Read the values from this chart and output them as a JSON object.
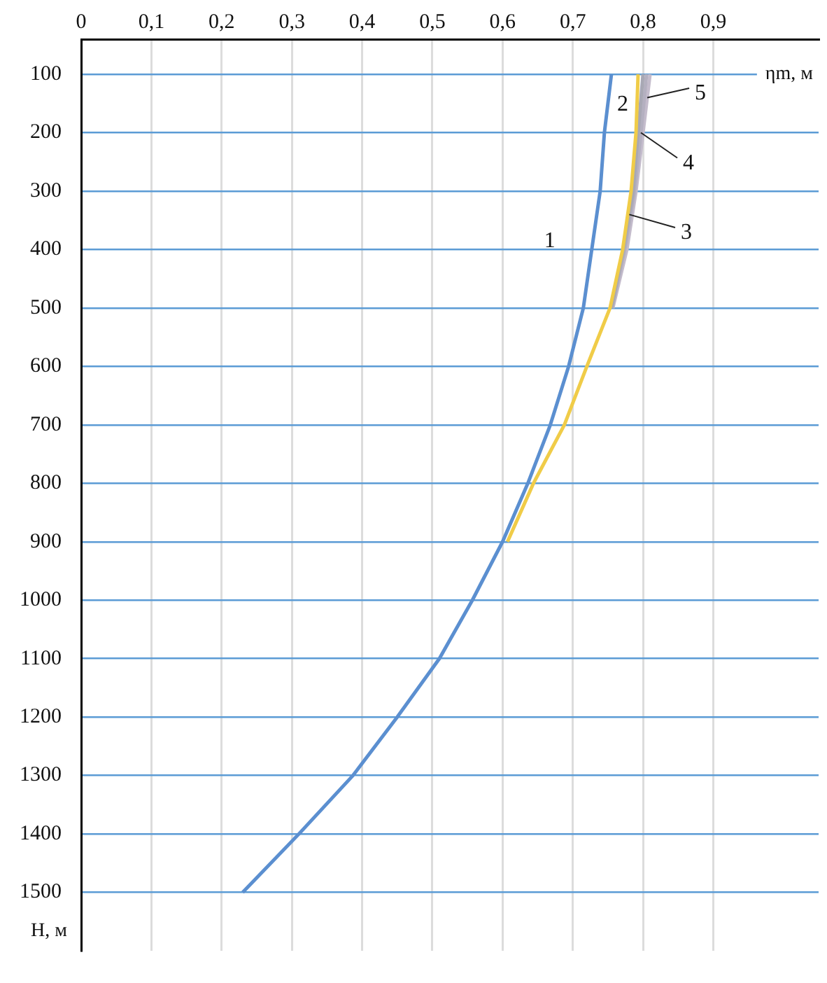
{
  "chart_data": {
    "type": "line",
    "orientation": "horizontal",
    "xlabel": "ηm, м",
    "ylabel": "H, м",
    "x": [
      100,
      200,
      300,
      400,
      500,
      600,
      700,
      800,
      900,
      1000,
      1100,
      1200,
      1300,
      1400,
      1500
    ],
    "series": [
      {
        "name": "1",
        "color": "#5b8fd0",
        "values": [
          0.755,
          0.745,
          0.739,
          0.727,
          0.715,
          0.694,
          0.668,
          0.636,
          0.6,
          0.557,
          0.51,
          0.45,
          0.387,
          0.31,
          0.23
        ]
      },
      {
        "name": "2",
        "color": "#f0cc48",
        "values": [
          0.793,
          0.79,
          0.783,
          0.771,
          0.753,
          0.72,
          0.688,
          0.644,
          0.607,
          null,
          null,
          null,
          null,
          null,
          null
        ]
      },
      {
        "name": "3",
        "color": "#a8a8b4",
        "values": [
          0.8,
          0.793,
          0.786,
          0.772,
          0.755,
          null,
          null,
          null,
          null,
          null,
          null,
          null,
          null,
          null,
          null
        ]
      },
      {
        "name": "4",
        "color": "#b4b0c0",
        "values": [
          0.805,
          0.797,
          0.788,
          0.774,
          0.756,
          null,
          null,
          null,
          null,
          null,
          null,
          null,
          null,
          null,
          null
        ]
      },
      {
        "name": "5",
        "color": "#c4bccc",
        "values": [
          0.81,
          0.8,
          0.79,
          0.777,
          0.757,
          null,
          null,
          null,
          null,
          null,
          null,
          null,
          null,
          null,
          null
        ]
      }
    ],
    "xlim": [
      0,
      1.05
    ],
    "xticks": [
      0,
      {
        "value": 0.1,
        "label": "0,1"
      },
      {
        "value": 0.2,
        "label": "0,2"
      },
      {
        "value": 0.3,
        "label": "0,3"
      },
      {
        "value": 0.4,
        "label": "0,4"
      },
      {
        "value": 0.5,
        "label": "0,5"
      },
      {
        "value": 0.6,
        "label": "0,6"
      },
      {
        "value": 0.7,
        "label": "0,7"
      },
      {
        "value": 0.8,
        "label": "0,8"
      },
      {
        "value": 0.9,
        "label": "0,9"
      }
    ],
    "ylim": [
      1600,
      40
    ],
    "yticks": [
      100,
      200,
      300,
      400,
      500,
      600,
      700,
      800,
      900,
      1000,
      1100,
      1200,
      1300,
      1400,
      1500
    ],
    "grid": true,
    "legend": false,
    "marker": "none",
    "line_style": "solid"
  }
}
